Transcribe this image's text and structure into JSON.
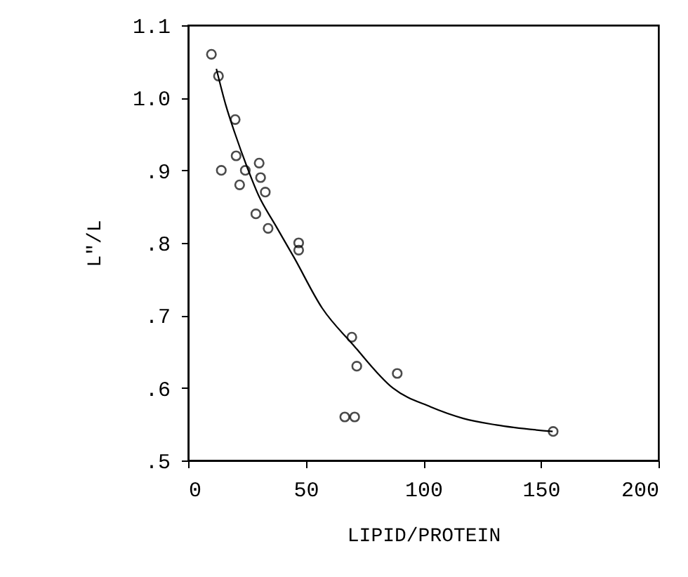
{
  "chart_data": {
    "type": "scatter",
    "xlabel": "LIPID/PROTEIN",
    "ylabel": "L\"/L",
    "xlim": [
      0,
      200
    ],
    "ylim": [
      0.5,
      1.1
    ],
    "xticks": [
      0,
      50,
      100,
      150,
      200
    ],
    "yticks": [
      {
        "value": 0.5,
        "label": ".5"
      },
      {
        "value": 0.6,
        "label": ".6"
      },
      {
        "value": 0.7,
        "label": ".7"
      },
      {
        "value": 0.8,
        "label": ".8"
      },
      {
        "value": 0.9,
        "label": ".9"
      },
      {
        "value": 1.0,
        "label": "1.0"
      },
      {
        "value": 1.1,
        "label": "1.1"
      }
    ],
    "grid": false,
    "marker": "circle",
    "series": [
      {
        "color": "#000000",
        "x": [
          9.9,
          12.9,
          20,
          20.4,
          14.1,
          24.3,
          21.9,
          30.2,
          30.8,
          32.8,
          28.8,
          34,
          47,
          47,
          69.6,
          71.7,
          88.9,
          66.6,
          70.8,
          155.2
        ],
        "values": [
          1.06,
          1.03,
          0.97,
          0.92,
          0.9,
          0.9,
          0.88,
          0.91,
          0.89,
          0.87,
          0.84,
          0.82,
          0.8,
          0.79,
          0.67,
          0.63,
          0.62,
          0.56,
          0.56,
          0.54
        ]
      },
      {
        "type": "line",
        "color": "#000000",
        "marker": "none",
        "line_style": "solid",
        "x": [
          12,
          16,
          20,
          25,
          30,
          37,
          45,
          57,
          70,
          87,
          103,
          117,
          131,
          155
        ],
        "values": [
          1.04,
          0.99,
          0.95,
          0.905,
          0.865,
          0.825,
          0.78,
          0.71,
          0.66,
          0.6,
          0.574,
          0.558,
          0.549,
          0.54
        ]
      }
    ]
  }
}
